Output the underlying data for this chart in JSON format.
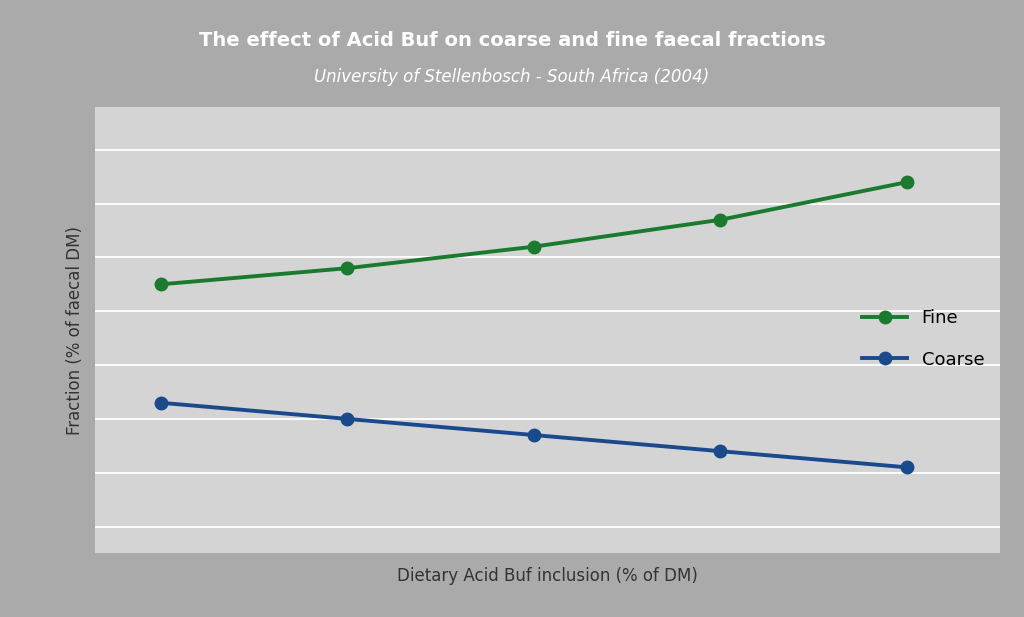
{
  "title": "The effect of Acid Buf on coarse and fine faecal fractions",
  "subtitle": "University of Stellenbosch - South Africa (2004)",
  "xlabel": "Dietary Acid Buf inclusion (% of DM)",
  "ylabel": "Fraction (% of faecal DM)",
  "fine_x": [
    0,
    1,
    2,
    3,
    4
  ],
  "fine_y": [
    55,
    58,
    62,
    67,
    74
  ],
  "coarse_x": [
    0,
    1,
    2,
    3,
    4
  ],
  "coarse_y": [
    33,
    30,
    27,
    24,
    21
  ],
  "fine_color": "#1a7a2e",
  "coarse_color": "#1a4a8c",
  "header_bg": "#1a4080",
  "header_text_color": "#ffffff",
  "plot_bg": "#d4d4d4",
  "outer_bg": "#c8c8c8",
  "border_color": "#aaaaaa",
  "legend_fine": "Fine",
  "legend_coarse": "Coarse",
  "title_fontsize": 14,
  "subtitle_fontsize": 12,
  "xlabel_fontsize": 12,
  "ylabel_fontsize": 12,
  "line_width": 2.8,
  "marker_size": 9
}
